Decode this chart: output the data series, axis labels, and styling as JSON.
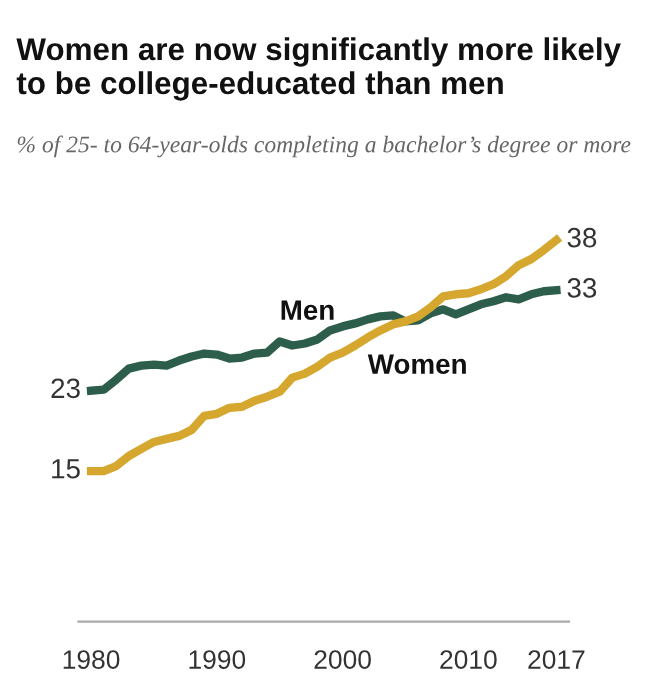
{
  "chart_data": {
    "type": "line",
    "title": "Women are now significantly more likely to be college-educated than men",
    "subtitle": "% of 25- to 64-year-olds completing a bachelor’s degree or more",
    "x": [
      1980,
      1981,
      1982,
      1983,
      1984,
      1985,
      1986,
      1987,
      1988,
      1989,
      1990,
      1991,
      1992,
      1993,
      1994,
      1995,
      1996,
      1997,
      1998,
      1999,
      2000,
      2001,
      2002,
      2003,
      2004,
      2005,
      2006,
      2007,
      2008,
      2009,
      2010,
      2011,
      2012,
      2013,
      2014,
      2015,
      2016,
      2017
    ],
    "series": [
      {
        "name": "Men",
        "color": "#2d5e4c",
        "values": [
          23.0,
          23.1,
          24.1,
          25.2,
          25.5,
          25.6,
          25.5,
          26.0,
          26.4,
          26.7,
          26.6,
          26.2,
          26.3,
          26.7,
          26.8,
          27.9,
          27.5,
          27.7,
          28.1,
          29.0,
          29.4,
          29.7,
          30.1,
          30.4,
          30.5,
          29.9,
          30.0,
          30.7,
          31.1,
          30.6,
          31.1,
          31.6,
          31.9,
          32.3,
          32.1,
          32.6,
          32.9,
          33.0
        ],
        "value_labels": [
          "23",
          null,
          null,
          null,
          null,
          null,
          null,
          null,
          null,
          null,
          null,
          null,
          null,
          null,
          null,
          null,
          null,
          null,
          null,
          null,
          null,
          null,
          null,
          null,
          null,
          null,
          null,
          null,
          null,
          null,
          null,
          null,
          null,
          null,
          null,
          null,
          null,
          "33"
        ]
      },
      {
        "name": "Women",
        "color": "#d5a72f",
        "values": [
          15.0,
          15.0,
          15.5,
          16.5,
          17.2,
          17.9,
          18.2,
          18.5,
          19.1,
          20.5,
          20.7,
          21.3,
          21.4,
          22.0,
          22.4,
          22.9,
          24.3,
          24.7,
          25.4,
          26.3,
          26.8,
          27.5,
          28.3,
          29.0,
          29.6,
          29.9,
          30.4,
          31.3,
          32.4,
          32.6,
          32.7,
          33.1,
          33.6,
          34.4,
          35.5,
          36.1,
          37.0,
          38.0
        ],
        "value_labels": [
          "15",
          null,
          null,
          null,
          null,
          null,
          null,
          null,
          null,
          null,
          null,
          null,
          null,
          null,
          null,
          null,
          null,
          null,
          null,
          null,
          null,
          null,
          null,
          null,
          null,
          null,
          null,
          null,
          null,
          null,
          null,
          null,
          null,
          null,
          null,
          null,
          null,
          "38"
        ]
      }
    ],
    "xlim": [
      1979,
      2018
    ],
    "xticks": [
      1980,
      1990,
      2000,
      2010,
      2017
    ],
    "tick_labels": "x",
    "grid": false,
    "legend": false,
    "marker": "none",
    "line_style": "solid"
  }
}
